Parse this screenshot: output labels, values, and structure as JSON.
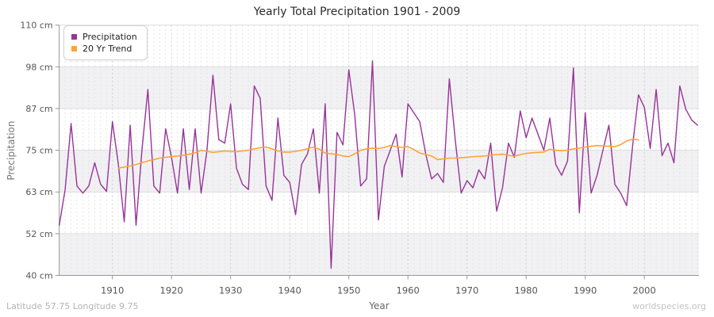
{
  "title": "Yearly Total Precipitation 1901 - 2009",
  "footer_left": "Latitude 57.75 Longitude 9.75",
  "watermark": "worldspecies.org",
  "colors": {
    "precipitation_line": "#993399",
    "trend_line": "#FFA433",
    "band_gray": "#f1f1f3",
    "grid_minor": "#e3e3e3",
    "grid_decade": "#cccccc",
    "grid_horizontal": "#dcdcdc",
    "axis": "#999999",
    "tick_text": "#555555"
  },
  "legend": [
    {
      "label": "Precipitation",
      "color": "#993399"
    },
    {
      "label": "20 Yr Trend",
      "color": "#FFA433"
    }
  ],
  "chart_data": {
    "type": "line",
    "title": "Yearly Total Precipitation 1901 - 2009",
    "xlabel": "Year",
    "ylabel": "Precipitation",
    "y_unit": "cm",
    "ylim": [
      40,
      110
    ],
    "y_tick_labels": [
      "110 cm",
      "98 cm",
      "87 cm",
      "75 cm",
      "63 cm",
      "52 cm",
      "40 cm"
    ],
    "x_tick_years": [
      1910,
      1920,
      1930,
      1940,
      1950,
      1960,
      1970,
      1980,
      1990,
      2000
    ],
    "grid": "dashed-yearly-vertical, banded-horizontal",
    "legend_position": "top-left",
    "series": [
      {
        "name": "Precipitation",
        "start_year": 1901,
        "end_year": 2009,
        "values": [
          54,
          64,
          82.5,
          65,
          63,
          65,
          71.5,
          65.5,
          63.5,
          83,
          71,
          55,
          82,
          54,
          75,
          92,
          65,
          63,
          81,
          73,
          63,
          81,
          64,
          81,
          63,
          75,
          96,
          78,
          77,
          88,
          70,
          65.5,
          64,
          93,
          89.5,
          65,
          61,
          84,
          68,
          66,
          57,
          71,
          74,
          81,
          63,
          88,
          42,
          80,
          76.5,
          97.5,
          85,
          65,
          67,
          100,
          55.5,
          70.5,
          75,
          79.5,
          67.5,
          88,
          85.5,
          83,
          74,
          67,
          68.5,
          66,
          95,
          78,
          63,
          66.5,
          64.5,
          69.5,
          67,
          77,
          58,
          64.5,
          77,
          73,
          86,
          78.5,
          84,
          79.5,
          75,
          84,
          71,
          68,
          72,
          98,
          57.5,
          85.5,
          63,
          68,
          75,
          82,
          65.5,
          63,
          59.5,
          76,
          90.5,
          87,
          75.5,
          92,
          73.5,
          77,
          71.5,
          93,
          86.5,
          83.5,
          82
        ]
      },
      {
        "name": "20 Yr Trend",
        "start_year": 1911,
        "end_year": 1999,
        "values": [
          70,
          70.3,
          70.6,
          71,
          71.5,
          72,
          72.4,
          72.8,
          73,
          73.2,
          73.4,
          73.6,
          73.9,
          74.3,
          75,
          74.7,
          74.4,
          74.6,
          74.8,
          74.7,
          74.6,
          74.8,
          75,
          75.4,
          75.7,
          75.9,
          75.4,
          74.8,
          74.5,
          74.5,
          74.7,
          75,
          75.4,
          75.9,
          75.3,
          74.2,
          74,
          73.8,
          73.4,
          73.2,
          74,
          75,
          75.4,
          75.6,
          75.5,
          75.8,
          76.3,
          76,
          75.8,
          76,
          75.2,
          74.2,
          73.8,
          73.4,
          72.4,
          72.6,
          72.8,
          72.8,
          72.9,
          73,
          73.2,
          73.3,
          73.4,
          73.6,
          73.8,
          73.9,
          73.6,
          73.3,
          73.8,
          74.1,
          74.3,
          74.4,
          74.5,
          75.3,
          75,
          74.9,
          75,
          75.4,
          75.6,
          75.9,
          76.1,
          76.3,
          76.2,
          76.1,
          76,
          76.6,
          77.6,
          78.1,
          77.9
        ]
      }
    ]
  }
}
